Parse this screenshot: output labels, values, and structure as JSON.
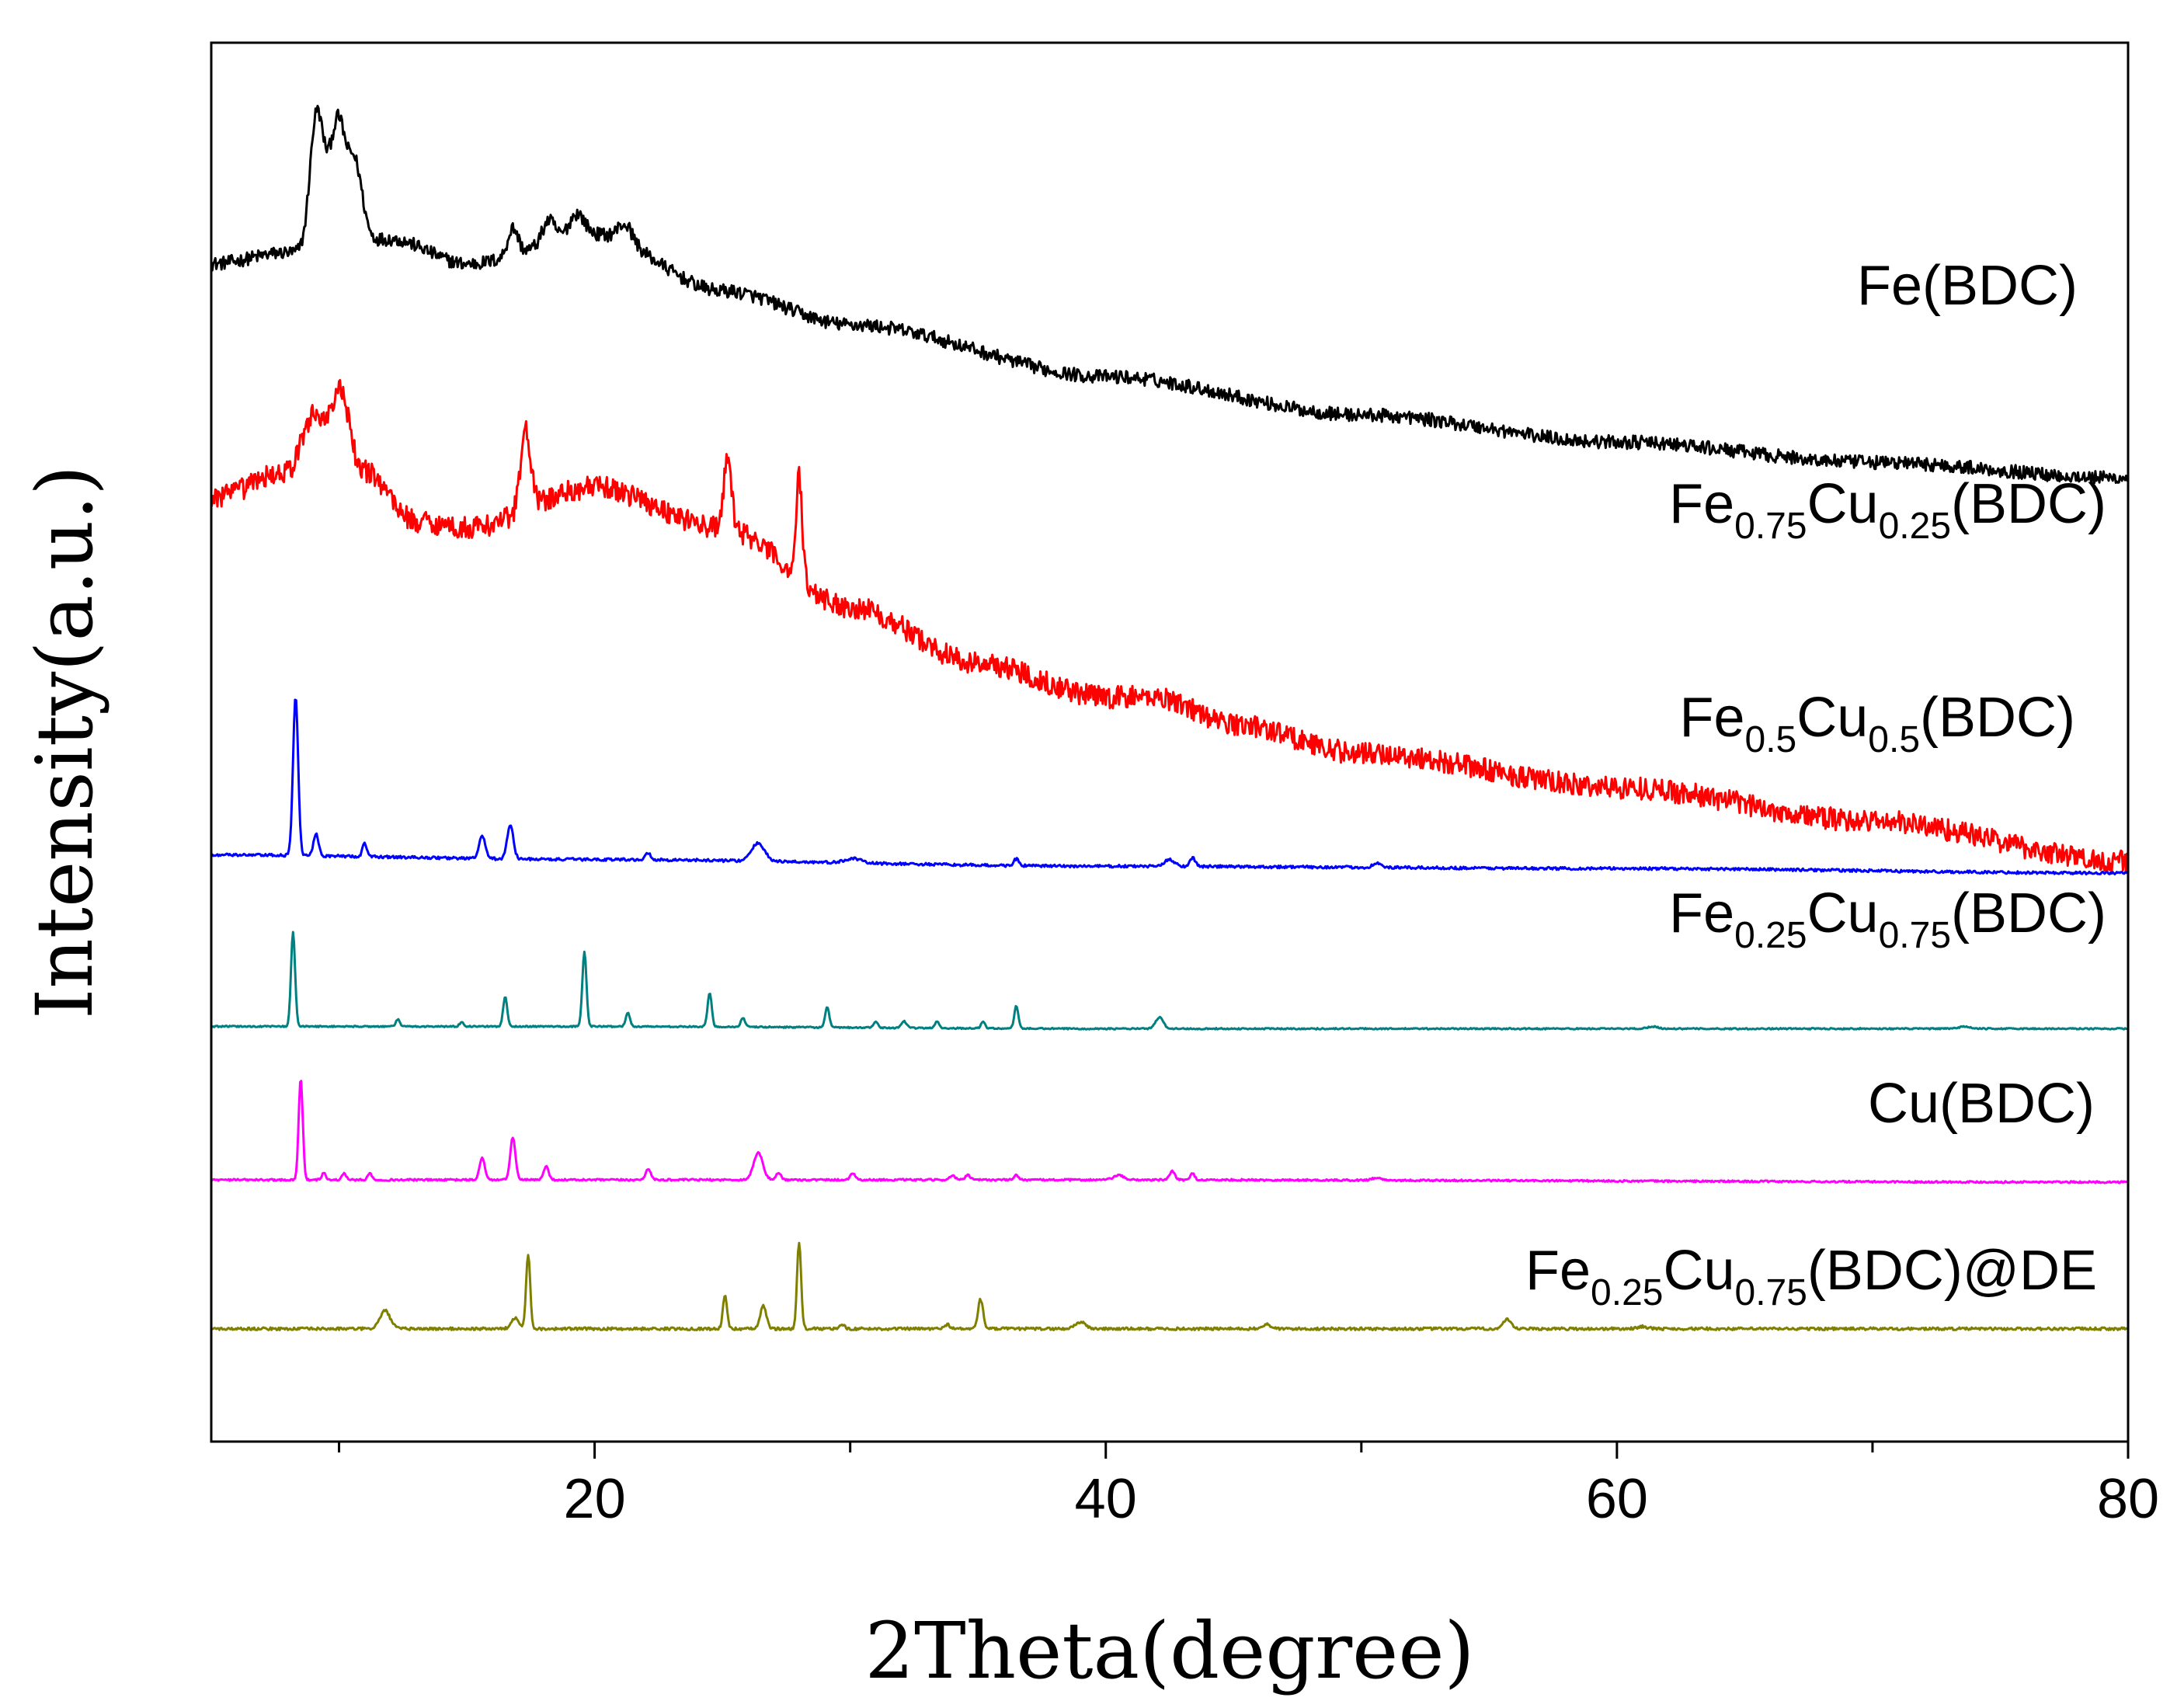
{
  "chart_data": {
    "type": "line",
    "title": "",
    "xlabel": "2Theta(degree)",
    "ylabel": "Intensity(a.u.)",
    "xlim": [
      5,
      80
    ],
    "ylim": [
      0,
      6.2
    ],
    "xticks": [
      20,
      40,
      60,
      80
    ],
    "xtick_labels": [
      "20",
      "40",
      "60",
      "80"
    ],
    "yticks_shown": false,
    "grid": false,
    "legend": "inline labels at right of each trace",
    "colors": {
      "fe_bdc": "#000000",
      "fe075cu025": "#ff0000",
      "fe05cu05": "#0000ff",
      "fe025cu075": "#008080",
      "cu_bdc": "#ff00ff",
      "fe025cu075_de": "#808000"
    },
    "series": [
      {
        "key": "fe_bdc",
        "name": "Fe(BDC)",
        "label": {
          "base": "Fe(BDC)",
          "parts": [
            {
              "t": "Fe(BDC)",
              "sub": false
            }
          ]
        },
        "baseline": [
          [
            5,
            5.22
          ],
          [
            8,
            5.27
          ],
          [
            12,
            5.33
          ],
          [
            15,
            5.22
          ],
          [
            20,
            5.35
          ],
          [
            25,
            5.1
          ],
          [
            30,
            4.95
          ],
          [
            40,
            4.72
          ],
          [
            50,
            4.55
          ],
          [
            60,
            4.43
          ],
          [
            70,
            4.34
          ],
          [
            80,
            4.27
          ]
        ],
        "peaks": [
          [
            9.1,
            0.55,
            0.25
          ],
          [
            10.0,
            0.42,
            0.25
          ],
          [
            10.6,
            0.36,
            0.3
          ],
          [
            9.6,
            0.25,
            0.3
          ],
          [
            16.8,
            0.12,
            0.2
          ],
          [
            18.2,
            0.1,
            0.25
          ],
          [
            19.3,
            0.1,
            0.3
          ],
          [
            21.2,
            0.08,
            0.3
          ]
        ],
        "noise": 0.03
      },
      {
        "key": "fe075cu025",
        "name": "Fe0.75Cu0.25(BDC)",
        "label": {
          "base": "Fe(BDC)",
          "parts": [
            {
              "t": "Fe",
              "sub": false
            },
            {
              "t": "0.75",
              "sub": true
            },
            {
              "t": "Cu",
              "sub": false
            },
            {
              "t": "0.25",
              "sub": true
            },
            {
              "t": "(BDC)",
              "sub": false
            }
          ]
        },
        "baseline": [
          [
            5,
            4.18
          ],
          [
            8,
            4.3
          ],
          [
            9,
            4.55
          ],
          [
            11,
            4.3
          ],
          [
            13,
            4.08
          ],
          [
            15,
            4.05
          ],
          [
            20,
            4.23
          ],
          [
            25,
            4.05
          ],
          [
            30,
            3.7
          ],
          [
            35,
            3.45
          ],
          [
            40,
            3.3
          ],
          [
            42,
            3.3
          ],
          [
            45,
            3.18
          ],
          [
            50,
            3.05
          ],
          [
            60,
            2.9
          ],
          [
            70,
            2.75
          ],
          [
            80,
            2.57
          ]
        ],
        "peaks": [
          [
            10.1,
            0.25,
            0.3
          ],
          [
            17.3,
            0.35,
            0.2
          ],
          [
            25.2,
            0.3,
            0.15
          ],
          [
            28.0,
            0.45,
            0.12
          ]
        ],
        "noise": 0.05
      },
      {
        "key": "fe05cu05",
        "name": "Fe0.5Cu0.5(BDC)",
        "label": {
          "base": "Fe(BDC)",
          "parts": [
            {
              "t": "Fe",
              "sub": false
            },
            {
              "t": "0.5",
              "sub": true
            },
            {
              "t": "Cu",
              "sub": false
            },
            {
              "t": "0.5",
              "sub": true
            },
            {
              "t": "(BDC)",
              "sub": false
            }
          ]
        },
        "baseline": [
          [
            5,
            2.6
          ],
          [
            20,
            2.58
          ],
          [
            40,
            2.55
          ],
          [
            60,
            2.54
          ],
          [
            80,
            2.52
          ]
        ],
        "peaks": [
          [
            8.3,
            0.7,
            0.1
          ],
          [
            9.1,
            0.1,
            0.1
          ],
          [
            11.0,
            0.06,
            0.08
          ],
          [
            15.6,
            0.1,
            0.12
          ],
          [
            16.7,
            0.15,
            0.12
          ],
          [
            22.1,
            0.03,
            0.1
          ],
          [
            26.4,
            0.08,
            0.25
          ],
          [
            30.1,
            0.02,
            0.3
          ],
          [
            36.5,
            0.03,
            0.1
          ],
          [
            42.5,
            0.03,
            0.2
          ],
          [
            43.4,
            0.04,
            0.1
          ],
          [
            50.6,
            0.02,
            0.15
          ]
        ],
        "noise": 0.006
      },
      {
        "key": "fe025cu075",
        "name": "Fe0.25Cu0.75(BDC)",
        "label": {
          "base": "Fe(BDC)",
          "parts": [
            {
              "t": "Fe",
              "sub": false
            },
            {
              "t": "0.25",
              "sub": true
            },
            {
              "t": "Cu",
              "sub": false
            },
            {
              "t": "0.75",
              "sub": true
            },
            {
              "t": "(BDC)",
              "sub": false
            }
          ]
        },
        "baseline": [
          [
            5,
            1.84
          ],
          [
            20,
            1.84
          ],
          [
            40,
            1.83
          ],
          [
            60,
            1.83
          ],
          [
            80,
            1.83
          ]
        ],
        "peaks": [
          [
            8.2,
            0.42,
            0.08
          ],
          [
            12.3,
            0.03,
            0.08
          ],
          [
            14.8,
            0.02,
            0.08
          ],
          [
            16.5,
            0.13,
            0.08
          ],
          [
            19.6,
            0.33,
            0.08
          ],
          [
            21.3,
            0.06,
            0.08
          ],
          [
            24.5,
            0.15,
            0.08
          ],
          [
            25.8,
            0.04,
            0.08
          ],
          [
            29.1,
            0.09,
            0.08
          ],
          [
            31.0,
            0.03,
            0.08
          ],
          [
            32.1,
            0.03,
            0.1
          ],
          [
            33.4,
            0.03,
            0.08
          ],
          [
            35.2,
            0.03,
            0.08
          ],
          [
            36.5,
            0.1,
            0.08
          ],
          [
            42.1,
            0.05,
            0.15
          ],
          [
            61.4,
            0.01,
            0.2
          ],
          [
            73.6,
            0.01,
            0.2
          ]
        ],
        "noise": 0.003
      },
      {
        "key": "cu_bdc",
        "name": "Cu(BDC)",
        "label": {
          "base": "Fe(BDC)",
          "parts": [
            {
              "t": "Cu(BDC)",
              "sub": false
            }
          ]
        },
        "baseline": [
          [
            5,
            1.16
          ],
          [
            40,
            1.16
          ],
          [
            80,
            1.15
          ]
        ],
        "peaks": [
          [
            8.5,
            0.45,
            0.08
          ],
          [
            9.4,
            0.03,
            0.08
          ],
          [
            10.2,
            0.03,
            0.08
          ],
          [
            11.2,
            0.03,
            0.08
          ],
          [
            15.6,
            0.1,
            0.1
          ],
          [
            16.8,
            0.19,
            0.1
          ],
          [
            18.1,
            0.06,
            0.1
          ],
          [
            22.1,
            0.05,
            0.1
          ],
          [
            26.4,
            0.12,
            0.18
          ],
          [
            27.2,
            0.03,
            0.1
          ],
          [
            30.1,
            0.03,
            0.1
          ],
          [
            34.0,
            0.02,
            0.1
          ],
          [
            34.6,
            0.02,
            0.1
          ],
          [
            36.5,
            0.02,
            0.1
          ],
          [
            40.5,
            0.02,
            0.2
          ],
          [
            42.6,
            0.04,
            0.1
          ],
          [
            43.4,
            0.03,
            0.08
          ],
          [
            50.6,
            0.01,
            0.2
          ]
        ],
        "noise": 0.004
      },
      {
        "key": "fe025cu075_de",
        "name": "Fe0.25Cu0.75(BDC)@DE",
        "label": {
          "base": "Fe(BDC)",
          "parts": [
            {
              "t": "Fe",
              "sub": false
            },
            {
              "t": "0.25",
              "sub": true
            },
            {
              "t": "Cu",
              "sub": false
            },
            {
              "t": "0.75",
              "sub": true
            },
            {
              "t": "(BDC)@DE",
              "sub": false
            }
          ]
        },
        "baseline": [
          [
            5,
            0.5
          ],
          [
            40,
            0.5
          ],
          [
            80,
            0.5
          ]
        ],
        "peaks": [
          [
            11.8,
            0.08,
            0.2
          ],
          [
            16.9,
            0.05,
            0.15
          ],
          [
            17.4,
            0.33,
            0.08
          ],
          [
            25.1,
            0.15,
            0.08
          ],
          [
            26.6,
            0.1,
            0.12
          ],
          [
            28.0,
            0.38,
            0.08
          ],
          [
            29.7,
            0.02,
            0.08
          ],
          [
            33.8,
            0.02,
            0.1
          ],
          [
            35.1,
            0.13,
            0.1
          ],
          [
            39.0,
            0.03,
            0.2
          ],
          [
            46.3,
            0.02,
            0.15
          ],
          [
            55.7,
            0.04,
            0.15
          ],
          [
            61.0,
            0.01,
            0.2
          ]
        ],
        "noise": 0.006
      }
    ]
  }
}
